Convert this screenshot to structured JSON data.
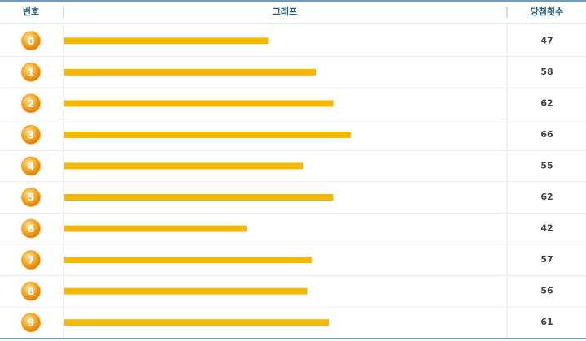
{
  "chart_data": {
    "type": "bar",
    "orientation": "horizontal",
    "headers": [
      "번호",
      "그래프",
      "당첨횟수"
    ],
    "categories": [
      "0",
      "1",
      "2",
      "3",
      "4",
      "5",
      "6",
      "7",
      "8",
      "9"
    ],
    "values": [
      47,
      58,
      62,
      66,
      55,
      62,
      42,
      57,
      56,
      61
    ],
    "color": "#f5b800"
  }
}
